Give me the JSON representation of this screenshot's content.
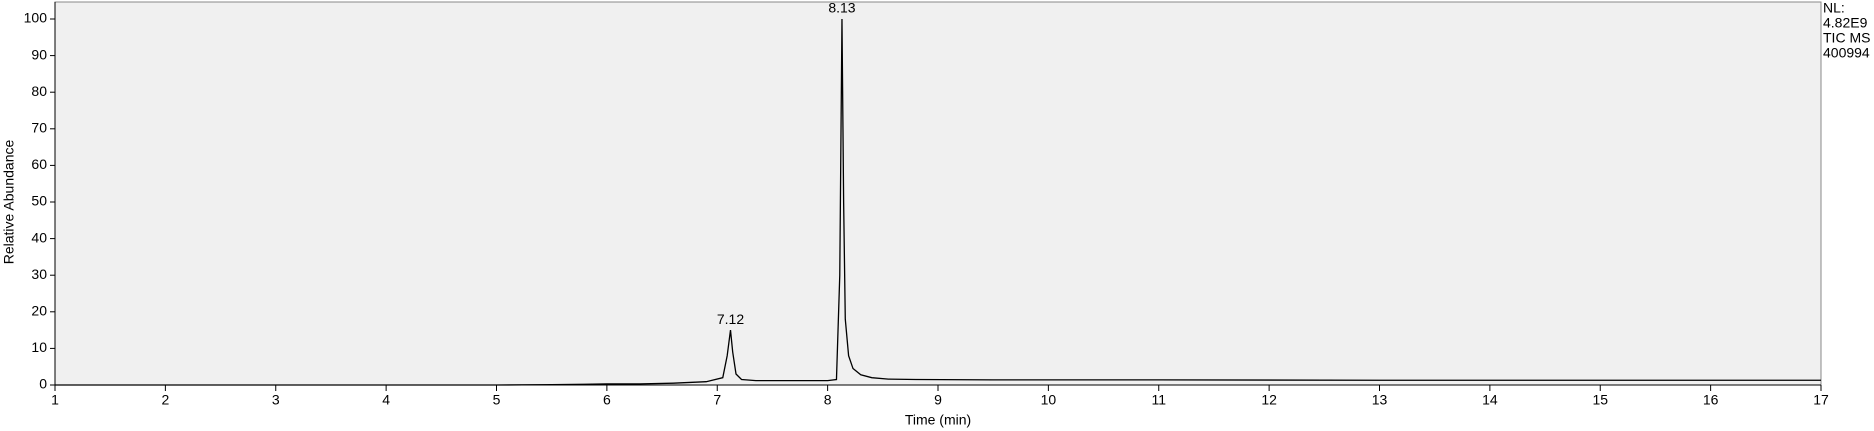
{
  "chart_data": {
    "type": "line",
    "xlabel": "Time (min)",
    "ylabel": "Relative Abundance",
    "info": [
      "NL:",
      "4.82E9",
      "TIC  MS",
      "400994"
    ],
    "x": [
      1,
      2,
      3,
      4,
      5,
      5.5,
      5.8,
      6.0,
      6.3,
      6.6,
      6.9,
      7.05,
      7.09,
      7.12,
      7.14,
      7.17,
      7.22,
      7.35,
      7.6,
      8.0,
      8.08,
      8.11,
      8.13,
      8.145,
      8.16,
      8.19,
      8.23,
      8.3,
      8.4,
      8.55,
      8.8,
      9.5,
      11,
      13,
      15,
      17
    ],
    "y": [
      0,
      0,
      0,
      0,
      0,
      0.1,
      0.2,
      0.3,
      0.3,
      0.5,
      0.9,
      2,
      8,
      15,
      9,
      3,
      1.5,
      1.2,
      1.2,
      1.2,
      1.5,
      30,
      100,
      50,
      18,
      8,
      4.5,
      2.8,
      2,
      1.6,
      1.5,
      1.4,
      1.4,
      1.3,
      1.3,
      1.3
    ],
    "color": "#000000",
    "annotations": [
      {
        "text": "7.12",
        "x": 7.12,
        "y": 15
      },
      {
        "text": "8.13",
        "x": 8.13,
        "y": 100
      }
    ],
    "xlim": [
      1,
      17
    ],
    "ylim": [
      0,
      100
    ],
    "xticks": [
      1,
      2,
      3,
      4,
      5,
      6,
      7,
      8,
      9,
      10,
      11,
      12,
      13,
      14,
      15,
      16,
      17
    ],
    "yticks": [
      0,
      10,
      20,
      30,
      40,
      50,
      60,
      70,
      80,
      90,
      100
    ]
  }
}
